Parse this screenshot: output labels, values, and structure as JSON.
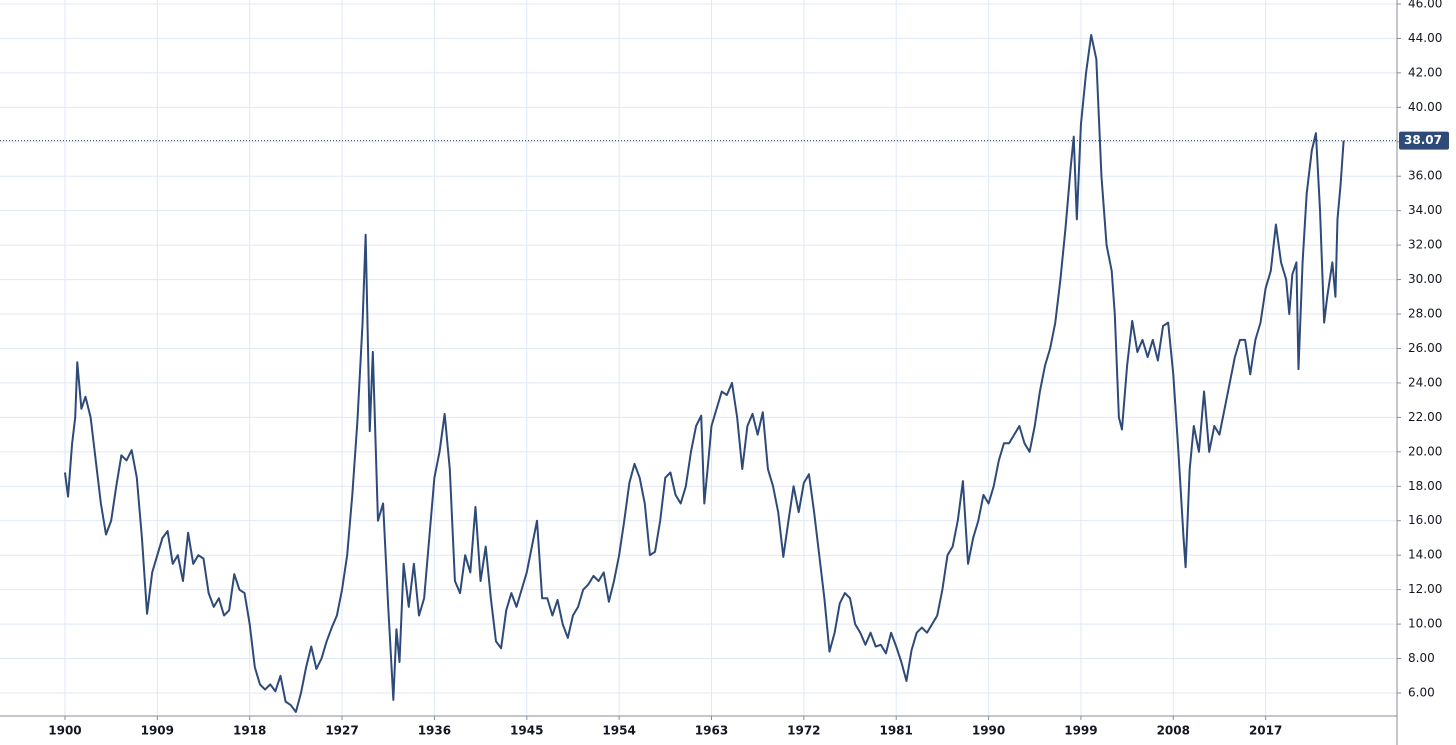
{
  "chart_data": {
    "type": "line",
    "x": [
      1900,
      1900.3,
      1900.7,
      1901,
      1901.2,
      1901.6,
      1902,
      1902.5,
      1903,
      1903.5,
      1904,
      1904.5,
      1905,
      1905.5,
      1906,
      1906.5,
      1907,
      1907.5,
      1908,
      1908.5,
      1909,
      1909.5,
      1910,
      1910.5,
      1911,
      1911.5,
      1912,
      1912.5,
      1913,
      1913.5,
      1914,
      1914.5,
      1915,
      1915.5,
      1916,
      1916.5,
      1917,
      1917.5,
      1918,
      1918.5,
      1919,
      1919.5,
      1920,
      1920.5,
      1921,
      1921.5,
      1922,
      1922.5,
      1923,
      1923.5,
      1924,
      1924.5,
      1925,
      1925.5,
      1926,
      1926.5,
      1927,
      1927.5,
      1928,
      1928.5,
      1929,
      1929.3,
      1929.7,
      1930,
      1930.5,
      1931,
      1931.5,
      1932,
      1932.3,
      1932.6,
      1933,
      1933.5,
      1934,
      1934.5,
      1935,
      1935.5,
      1936,
      1936.5,
      1937,
      1937.5,
      1938,
      1938.5,
      1939,
      1939.5,
      1940,
      1940.5,
      1941,
      1941.5,
      1942,
      1942.5,
      1943,
      1943.5,
      1944,
      1944.5,
      1945,
      1945.5,
      1946,
      1946.5,
      1947,
      1947.5,
      1948,
      1948.5,
      1949,
      1949.5,
      1950,
      1950.5,
      1951,
      1951.5,
      1952,
      1952.5,
      1953,
      1953.5,
      1954,
      1954.5,
      1955,
      1955.5,
      1956,
      1956.5,
      1957,
      1957.5,
      1958,
      1958.5,
      1959,
      1959.5,
      1960,
      1960.5,
      1961,
      1961.5,
      1962,
      1962.3,
      1962.7,
      1963,
      1963.5,
      1964,
      1964.5,
      1965,
      1965.5,
      1966,
      1966.5,
      1967,
      1967.5,
      1968,
      1968.5,
      1969,
      1969.5,
      1970,
      1970.5,
      1971,
      1971.5,
      1972,
      1972.5,
      1973,
      1973.5,
      1974,
      1974.5,
      1975,
      1975.5,
      1976,
      1976.5,
      1977,
      1977.5,
      1978,
      1978.5,
      1979,
      1979.5,
      1980,
      1980.5,
      1981,
      1981.5,
      1982,
      1982.5,
      1983,
      1983.5,
      1984,
      1984.5,
      1985,
      1985.5,
      1986,
      1986.5,
      1987,
      1987.5,
      1988,
      1988.5,
      1989,
      1989.5,
      1990,
      1990.5,
      1991,
      1991.5,
      1992,
      1992.5,
      1993,
      1993.5,
      1994,
      1994.5,
      1995,
      1995.5,
      1996,
      1996.5,
      1997,
      1997.5,
      1998,
      1998.3,
      1998.6,
      1999,
      1999.5,
      2000,
      2000.5,
      2001,
      2001.5,
      2002,
      2002.3,
      2002.7,
      2003,
      2003.5,
      2004,
      2004.5,
      2005,
      2005.5,
      2006,
      2006.5,
      2007,
      2007.5,
      2008,
      2008.5,
      2009,
      2009.2,
      2009.6,
      2010,
      2010.5,
      2011,
      2011.5,
      2012,
      2012.5,
      2013,
      2013.5,
      2014,
      2014.5,
      2015,
      2015.5,
      2016,
      2016.5,
      2017,
      2017.5,
      2018,
      2018.5,
      2019,
      2019.3,
      2019.6,
      2020,
      2020.2,
      2020.6,
      2021,
      2021.5,
      2021.9,
      2022.3,
      2022.7,
      2023,
      2023.5,
      2023.8,
      2024,
      2024.3,
      2024.6
    ],
    "values": [
      18.8,
      17.4,
      20.5,
      22,
      25.2,
      22.5,
      23.2,
      22,
      19.5,
      17,
      15.2,
      16,
      18,
      19.8,
      19.5,
      20.1,
      18.5,
      15,
      10.6,
      13,
      14,
      15,
      15.4,
      13.5,
      14,
      12.5,
      15.3,
      13.5,
      14,
      13.8,
      11.8,
      11,
      11.5,
      10.5,
      10.8,
      12.9,
      12,
      11.8,
      10,
      7.5,
      6.5,
      6.2,
      6.5,
      6.1,
      7,
      5.5,
      5.3,
      4.9,
      6,
      7.5,
      8.7,
      7.4,
      8,
      9,
      9.8,
      10.5,
      12,
      14,
      17.5,
      21.8,
      27.5,
      32.6,
      21.2,
      25.8,
      16,
      17,
      11,
      5.6,
      9.7,
      7.8,
      13.5,
      11,
      13.5,
      10.5,
      11.5,
      15,
      18.5,
      20,
      22.2,
      19,
      12.5,
      11.8,
      14,
      13,
      16.8,
      12.5,
      14.5,
      11.5,
      9,
      8.6,
      10.8,
      11.8,
      11,
      12,
      13,
      14.5,
      16,
      11.5,
      11.5,
      10.5,
      11.4,
      10,
      9.2,
      10.5,
      11,
      12,
      12.3,
      12.8,
      12.5,
      13,
      11.3,
      12.5,
      14,
      16,
      18.2,
      19.3,
      18.5,
      17,
      14,
      14.2,
      16,
      18.5,
      18.8,
      17.5,
      17,
      18,
      20,
      21.5,
      22.1,
      17,
      19.5,
      21.5,
      22.5,
      23.5,
      23.3,
      24,
      22,
      19,
      21.5,
      22.2,
      21,
      22.3,
      19,
      18,
      16.5,
      13.9,
      16,
      18,
      16.5,
      18.2,
      18.7,
      16.5,
      14,
      11.5,
      8.4,
      9.5,
      11.2,
      11.8,
      11.5,
      10,
      9.5,
      8.8,
      9.5,
      8.7,
      8.8,
      8.3,
      9.5,
      8.7,
      7.8,
      6.7,
      8.5,
      9.5,
      9.8,
      9.5,
      10,
      10.5,
      12,
      14,
      14.5,
      16,
      18.3,
      13.5,
      15,
      16,
      17.5,
      17,
      18,
      19.5,
      20.5,
      20.5,
      21,
      21.5,
      20.5,
      20,
      21.5,
      23.5,
      25,
      26,
      27.5,
      30,
      33,
      36.5,
      38.3,
      33.5,
      39,
      42,
      44.2,
      42.8,
      36,
      32,
      30.5,
      28,
      22,
      21.3,
      25,
      27.6,
      25.8,
      26.5,
      25.5,
      26.5,
      25.3,
      27.3,
      27.5,
      24.5,
      20,
      15,
      13.3,
      19,
      21.5,
      20,
      23.5,
      20,
      21.5,
      21,
      22.5,
      24,
      25.5,
      26.5,
      26.5,
      24.5,
      26.5,
      27.5,
      29.5,
      30.5,
      33.2,
      31,
      30,
      28,
      30.3,
      31,
      24.8,
      31,
      35,
      37.5,
      38.5,
      34,
      27.5,
      29,
      31,
      29,
      33.5,
      35.5,
      38.07
    ],
    "color": "#2e4a78",
    "current_value": 38.07,
    "xlim": [
      1893.67,
      2029.8
    ],
    "xticks": [
      1900,
      1909,
      1918,
      1927,
      1936,
      1945,
      1954,
      1963,
      1972,
      1981,
      1990,
      1999,
      2008,
      2017
    ],
    "ylim": [
      4.665,
      46.23
    ],
    "yticks": [
      {
        "value": 6,
        "label": "6.00"
      },
      {
        "value": 8,
        "label": "8.00"
      },
      {
        "value": 10,
        "label": "10.00"
      },
      {
        "value": 12,
        "label": "12.00"
      },
      {
        "value": 14,
        "label": "14.00"
      },
      {
        "value": 16,
        "label": "16.00"
      },
      {
        "value": 18,
        "label": "18.00"
      },
      {
        "value": 20,
        "label": "20.00"
      },
      {
        "value": 22,
        "label": "22.00"
      },
      {
        "value": 24,
        "label": "24.00"
      },
      {
        "value": 26,
        "label": "26.00"
      },
      {
        "value": 28,
        "label": "28.00"
      },
      {
        "value": 30,
        "label": "30.00"
      },
      {
        "value": 32,
        "label": "32.00"
      },
      {
        "value": 34,
        "label": "34.00"
      },
      {
        "value": 36,
        "label": "36.00"
      },
      {
        "value": 38,
        "label": "38.00"
      },
      {
        "value": 40,
        "label": "40.00"
      },
      {
        "value": 42,
        "label": "42.00"
      },
      {
        "value": 44,
        "label": "44.00"
      },
      {
        "value": 46,
        "label": "46.00"
      }
    ],
    "grid": true
  }
}
